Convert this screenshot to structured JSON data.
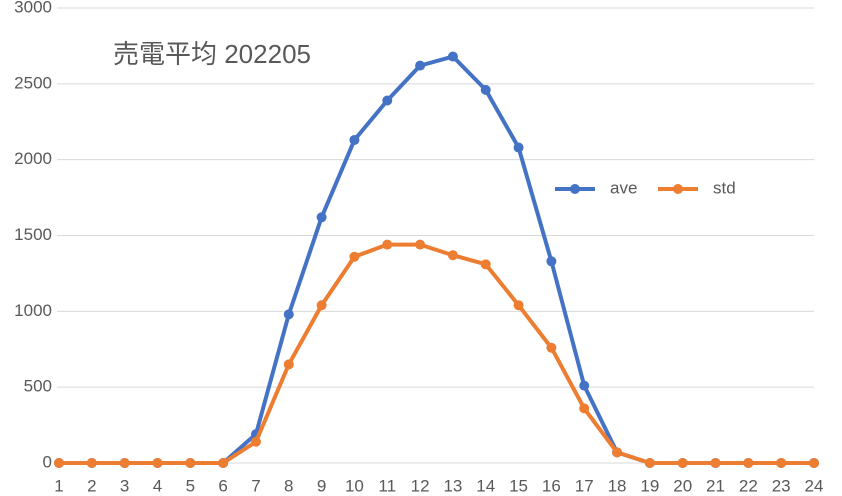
{
  "chart_data": {
    "type": "line",
    "title": "売電平均 202205",
    "categories": [
      "1",
      "2",
      "3",
      "4",
      "5",
      "6",
      "7",
      "8",
      "9",
      "10",
      "11",
      "12",
      "13",
      "14",
      "15",
      "16",
      "17",
      "18",
      "19",
      "20",
      "21",
      "22",
      "23",
      "24"
    ],
    "series": [
      {
        "name": "ave",
        "color": "#4472c4",
        "values": [
          0,
          0,
          0,
          0,
          0,
          0,
          190,
          980,
          1620,
          2130,
          2390,
          2620,
          2680,
          2460,
          2080,
          1330,
          510,
          70,
          0,
          0,
          0,
          0,
          0,
          0
        ]
      },
      {
        "name": "std",
        "color": "#ed7d31",
        "values": [
          0,
          0,
          0,
          0,
          0,
          0,
          140,
          650,
          1040,
          1360,
          1440,
          1440,
          1370,
          1310,
          1040,
          760,
          360,
          70,
          0,
          0,
          0,
          0,
          0,
          0
        ]
      }
    ],
    "ylim": [
      0,
      3000
    ],
    "yticks": [
      0,
      500,
      1000,
      1500,
      2000,
      2500,
      3000
    ],
    "grid": true,
    "legend": "right"
  }
}
